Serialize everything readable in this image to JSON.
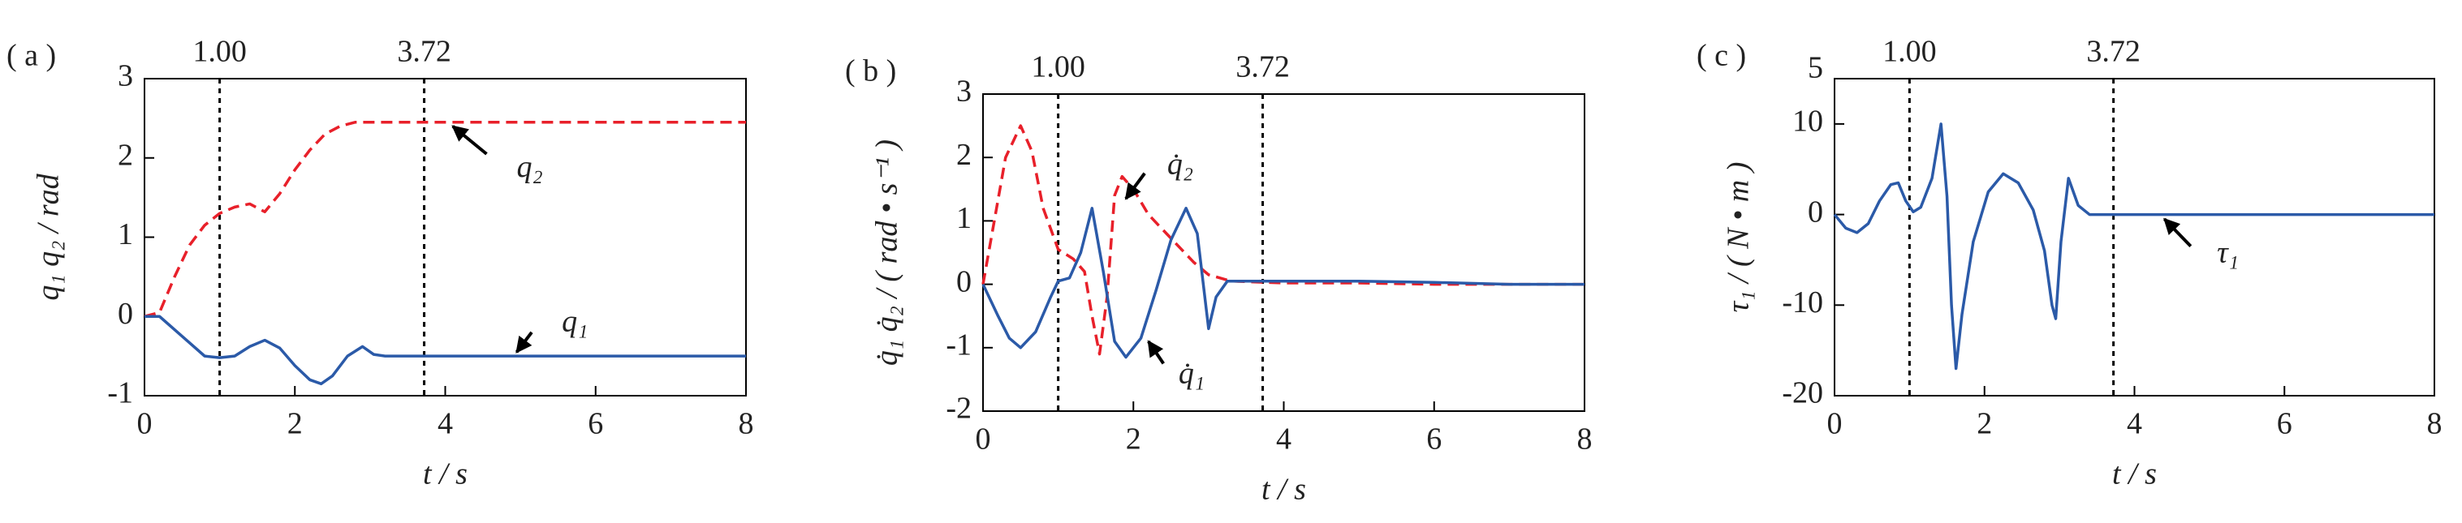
{
  "chart_data": [
    {
      "type": "line",
      "panel": "( a )",
      "xlabel": "t / s",
      "ylabel": "q₁  q₂ / rad",
      "xlim": [
        0,
        8
      ],
      "xticks": [
        0,
        2,
        4,
        6,
        8
      ],
      "ylim": [
        -1,
        3
      ],
      "yticks": [
        -1,
        0,
        1,
        2,
        3
      ],
      "vlines": [
        {
          "value": 1,
          "label": "1.00"
        },
        {
          "value": 3.72,
          "label": "3.72"
        }
      ],
      "annotations": [
        "q₂",
        "q₁"
      ],
      "series": [
        {
          "name": "q₂",
          "color": "#e8202a",
          "dashed": true,
          "x": [
            0,
            0.2,
            0.4,
            0.6,
            0.8,
            1.0,
            1.2,
            1.4,
            1.6,
            1.8,
            2.0,
            2.2,
            2.4,
            2.6,
            2.8,
            3.0,
            4,
            5,
            6,
            7,
            8
          ],
          "values": [
            0,
            0.05,
            0.5,
            0.9,
            1.15,
            1.3,
            1.38,
            1.42,
            1.32,
            1.55,
            1.85,
            2.1,
            2.3,
            2.4,
            2.45,
            2.45,
            2.45,
            2.45,
            2.45,
            2.45,
            2.45
          ]
        },
        {
          "name": "q₁",
          "color": "#2b5aa8",
          "dashed": false,
          "x": [
            0,
            0.2,
            0.5,
            0.8,
            1.0,
            1.2,
            1.4,
            1.6,
            1.8,
            2.0,
            2.2,
            2.35,
            2.5,
            2.7,
            2.9,
            3.05,
            3.2,
            4,
            5,
            6,
            7,
            8
          ],
          "values": [
            0,
            0,
            -0.25,
            -0.5,
            -0.52,
            -0.5,
            -0.38,
            -0.3,
            -0.4,
            -0.62,
            -0.8,
            -0.85,
            -0.75,
            -0.5,
            -0.38,
            -0.48,
            -0.5,
            -0.5,
            -0.5,
            -0.5,
            -0.5,
            -0.5
          ]
        }
      ]
    },
    {
      "type": "line",
      "panel": "( b )",
      "xlabel": "t / s",
      "ylabel": "q̇₁  q̇₂ / ( rad • s⁻¹ )",
      "xlim": [
        0,
        8
      ],
      "xticks": [
        0,
        2,
        4,
        6,
        8
      ],
      "ylim": [
        -2,
        3
      ],
      "yticks": [
        -2,
        -1,
        0,
        1,
        2,
        3
      ],
      "vlines": [
        {
          "value": 1,
          "label": "1.00"
        },
        {
          "value": 3.72,
          "label": "3.72"
        }
      ],
      "annotations": [
        "q̇₂",
        "q̇₁"
      ],
      "series": [
        {
          "name": "q̇₂",
          "color": "#e8202a",
          "dashed": true,
          "x": [
            0,
            0.15,
            0.3,
            0.5,
            0.65,
            0.8,
            1.0,
            1.2,
            1.35,
            1.45,
            1.55,
            1.65,
            1.75,
            1.85,
            2.0,
            2.2,
            2.4,
            2.6,
            2.8,
            3.0,
            3.3,
            4,
            5,
            6,
            7,
            8
          ],
          "values": [
            0,
            1.0,
            2.0,
            2.5,
            2.1,
            1.2,
            0.55,
            0.4,
            0.2,
            -0.5,
            -1.1,
            -0.2,
            1.4,
            1.7,
            1.5,
            1.1,
            0.85,
            0.6,
            0.35,
            0.15,
            0.05,
            0.02,
            0.02,
            0,
            0,
            0
          ]
        },
        {
          "name": "q̇₁",
          "color": "#2b5aa8",
          "dashed": false,
          "x": [
            0,
            0.2,
            0.35,
            0.5,
            0.7,
            0.9,
            1.0,
            1.15,
            1.3,
            1.45,
            1.6,
            1.75,
            1.9,
            2.1,
            2.3,
            2.5,
            2.7,
            2.85,
            3.0,
            3.1,
            3.25,
            4,
            5,
            6,
            7,
            8
          ],
          "values": [
            0,
            -0.5,
            -0.85,
            -1.0,
            -0.75,
            -0.2,
            0.05,
            0.1,
            0.5,
            1.2,
            0.2,
            -0.9,
            -1.15,
            -0.85,
            -0.1,
            0.7,
            1.2,
            0.8,
            -0.7,
            -0.2,
            0.05,
            0.05,
            0.05,
            0.03,
            0,
            0
          ]
        }
      ]
    },
    {
      "type": "line",
      "panel": "( c )",
      "xlabel": "t / s",
      "ylabel": "τ₁ / ( N • m )",
      "xlim": [
        0,
        8
      ],
      "xticks": [
        0,
        2,
        4,
        6,
        8
      ],
      "ylim": [
        -20,
        15
      ],
      "yticks": [
        -20,
        -10,
        0,
        10
      ],
      "top_label": "5",
      "vlines": [
        {
          "value": 1,
          "label": "1.00"
        },
        {
          "value": 3.72,
          "label": "3.72"
        }
      ],
      "annotations": [
        "τ₁"
      ],
      "series": [
        {
          "name": "τ₁",
          "color": "#2b5aa8",
          "dashed": false,
          "x": [
            0,
            0.15,
            0.3,
            0.45,
            0.6,
            0.75,
            0.85,
            0.95,
            1.05,
            1.15,
            1.3,
            1.42,
            1.5,
            1.56,
            1.62,
            1.7,
            1.85,
            2.05,
            2.25,
            2.45,
            2.65,
            2.8,
            2.9,
            2.95,
            3.02,
            3.12,
            3.25,
            3.4,
            4,
            5,
            6,
            7,
            8
          ],
          "values": [
            0,
            -1.5,
            -2,
            -1,
            1.5,
            3.3,
            3.5,
            1.5,
            0.3,
            0.8,
            4,
            10,
            2,
            -10,
            -17,
            -11,
            -3,
            2.5,
            4.5,
            3.5,
            0.5,
            -4,
            -10,
            -11.5,
            -3,
            4,
            1,
            0,
            0,
            0,
            0,
            0,
            0
          ]
        }
      ]
    }
  ]
}
